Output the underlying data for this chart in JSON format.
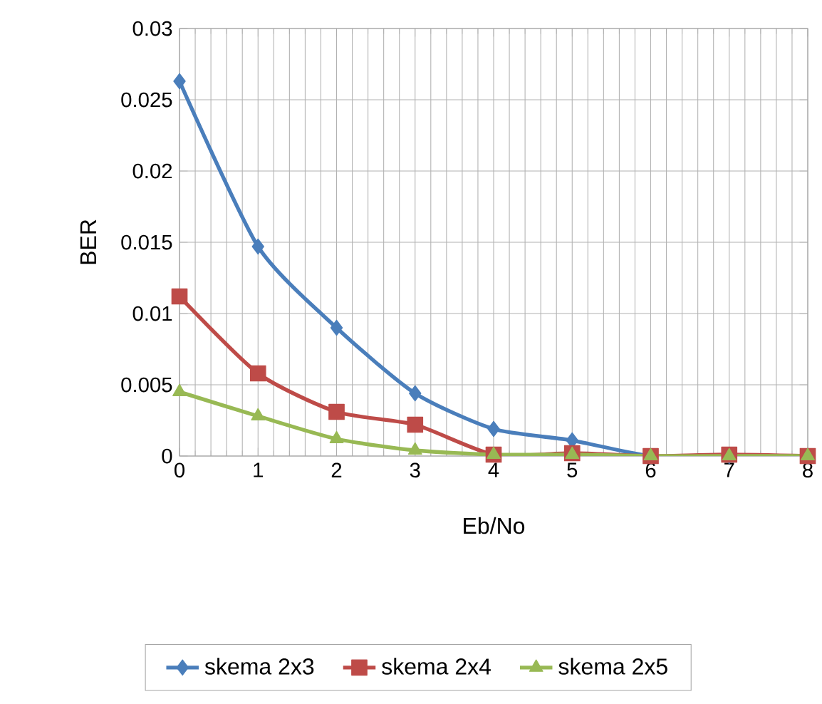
{
  "chart_data": {
    "type": "line",
    "xlabel": "Eb/No",
    "ylabel": "BER",
    "x": [
      0,
      1,
      2,
      3,
      4,
      5,
      6,
      7,
      8
    ],
    "series": [
      {
        "name": "skema 2x3",
        "color": "#4a7ebb",
        "marker": "diamond",
        "values": [
          0.0263,
          0.0147,
          0.009,
          0.0044,
          0.0019,
          0.0011,
          0,
          0,
          0
        ]
      },
      {
        "name": "skema 2x4",
        "color": "#be4b48",
        "marker": "square",
        "values": [
          0.0112,
          0.0058,
          0.0031,
          0.0022,
          0.0001,
          0.0002,
          0,
          0.0001,
          0
        ]
      },
      {
        "name": "skema 2x5",
        "color": "#98b954",
        "marker": "triangle",
        "values": [
          0.0045,
          0.0028,
          0.0012,
          0.0004,
          0.0001,
          0.0001,
          0,
          0,
          0
        ]
      }
    ],
    "xlim": [
      0,
      8
    ],
    "xticks": [
      0,
      1,
      2,
      3,
      4,
      5,
      6,
      7,
      8
    ],
    "ylim": [
      0,
      0.03
    ],
    "yticks": [
      0,
      0.005,
      0.01,
      0.015,
      0.02,
      0.025,
      0.03
    ],
    "grid": true,
    "legend": "bottom"
  }
}
